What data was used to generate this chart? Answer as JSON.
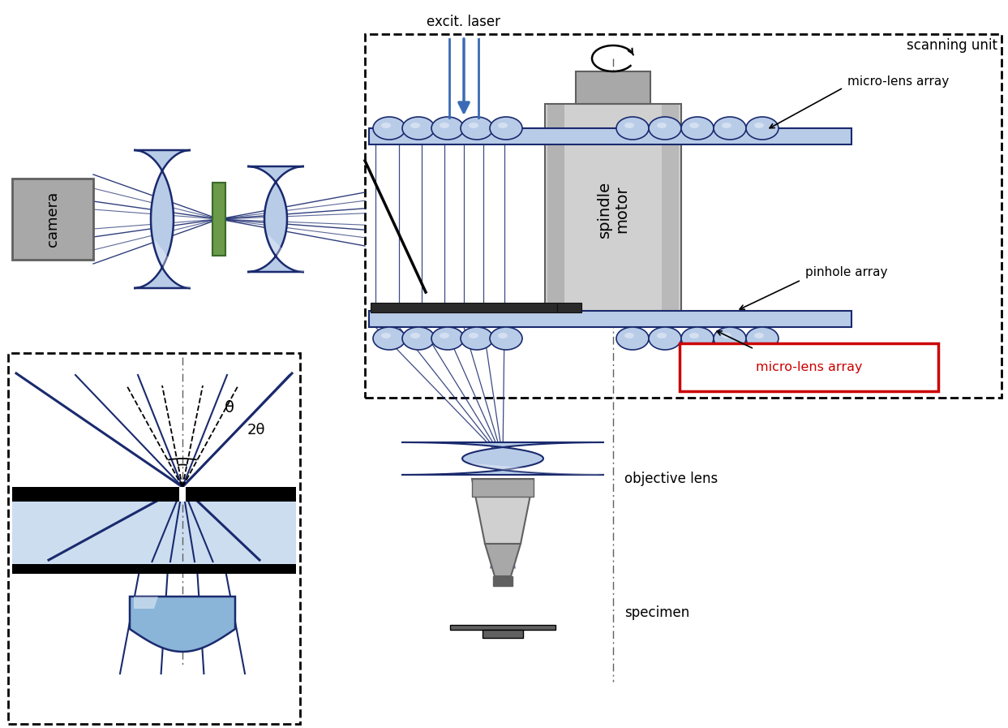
{
  "bg_color": "#ffffff",
  "dark_blue": "#1a2a6e",
  "mid_blue": "#3a6ab5",
  "light_blue": "#b8cce8",
  "blue_fill": "#ccddf0",
  "gray_light": "#d0d0d0",
  "gray_mid": "#a8a8a8",
  "gray_dark": "#606060",
  "black": "#000000",
  "red": "#cc0000",
  "green_filter": "#6a9a4a",
  "labels": {
    "excit_laser": "excit. laser",
    "scanning_unit": "scanning unit",
    "micro_lens_array_top": "micro-lens array",
    "micro_lens_array_bot": "micro-lens array",
    "pinhole_array": "pinhole array",
    "spindle_motor": "spindle\nmotor",
    "camera": "camera",
    "objective_lens": "objective lens",
    "specimen": "specimen",
    "theta": "θ",
    "two_theta": "2θ"
  }
}
